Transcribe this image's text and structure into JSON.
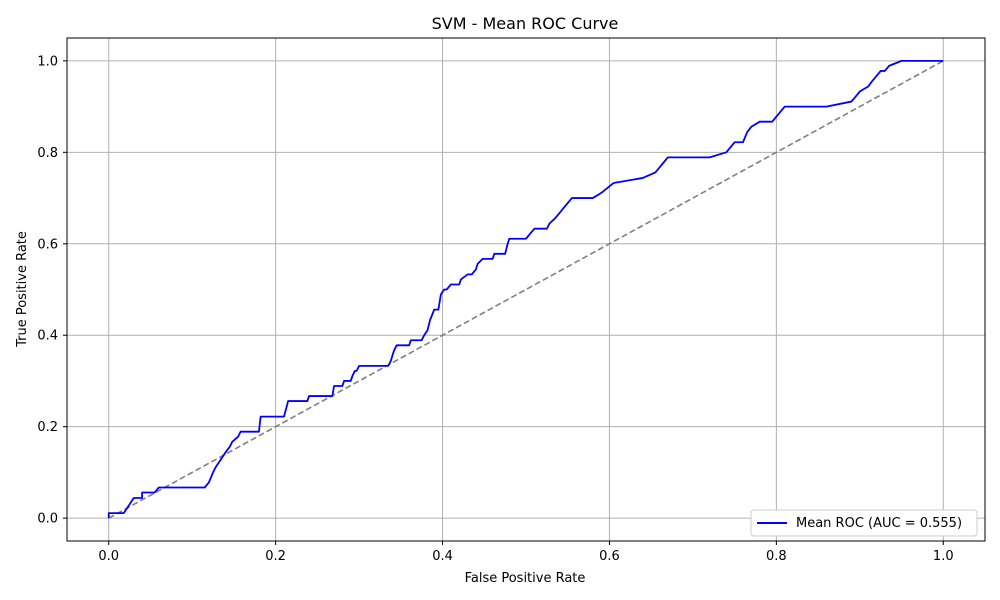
{
  "chart_data": {
    "type": "line",
    "title": "SVM - Mean ROC Curve",
    "xlabel": "False Positive Rate",
    "ylabel": "True Positive Rate",
    "xlim": [
      -0.05,
      1.05
    ],
    "ylim": [
      -0.05,
      1.05
    ],
    "x_ticks": [
      0.0,
      0.2,
      0.4,
      0.6,
      0.8,
      1.0
    ],
    "x_tick_labels": [
      "0.0",
      "0.2",
      "0.4",
      "0.6",
      "0.8",
      "1.0"
    ],
    "y_ticks": [
      0.0,
      0.2,
      0.4,
      0.6,
      0.8,
      1.0
    ],
    "y_tick_labels": [
      "0.0",
      "0.2",
      "0.4",
      "0.6",
      "0.8",
      "1.0"
    ],
    "grid": true,
    "legend_position": "lower-right",
    "legend_label": "Mean ROC (AUC = 0.555)",
    "series": [
      {
        "name": "Mean ROC (AUC = 0.555)",
        "color": "#0000ff",
        "style": "solid",
        "x": [
          0.0,
          0.0,
          0.018,
          0.022,
          0.026,
          0.03,
          0.04,
          0.04,
          0.055,
          0.06,
          0.115,
          0.12,
          0.125,
          0.128,
          0.132,
          0.136,
          0.14,
          0.145,
          0.148,
          0.155,
          0.158,
          0.18,
          0.182,
          0.21,
          0.215,
          0.238,
          0.24,
          0.268,
          0.27,
          0.28,
          0.282,
          0.29,
          0.292,
          0.295,
          0.297,
          0.3,
          0.335,
          0.338,
          0.34,
          0.342,
          0.345,
          0.36,
          0.362,
          0.375,
          0.378,
          0.382,
          0.385,
          0.39,
          0.395,
          0.398,
          0.402,
          0.405,
          0.41,
          0.42,
          0.422,
          0.43,
          0.435,
          0.44,
          0.442,
          0.448,
          0.46,
          0.462,
          0.475,
          0.478,
          0.48,
          0.5,
          0.505,
          0.51,
          0.525,
          0.528,
          0.535,
          0.54,
          0.545,
          0.55,
          0.555,
          0.58,
          0.59,
          0.605,
          0.64,
          0.655,
          0.66,
          0.665,
          0.67,
          0.72,
          0.74,
          0.75,
          0.76,
          0.765,
          0.77,
          0.78,
          0.795,
          0.8,
          0.81,
          0.86,
          0.89,
          0.895,
          0.9,
          0.91,
          0.915,
          0.92,
          0.925,
          0.93,
          0.935,
          0.95,
          0.96,
          0.965,
          1.0
        ],
        "y": [
          0.0,
          0.011,
          0.011,
          0.022,
          0.033,
          0.044,
          0.044,
          0.056,
          0.056,
          0.067,
          0.067,
          0.078,
          0.1,
          0.111,
          0.122,
          0.133,
          0.144,
          0.156,
          0.167,
          0.178,
          0.189,
          0.189,
          0.222,
          0.222,
          0.256,
          0.256,
          0.267,
          0.267,
          0.289,
          0.289,
          0.3,
          0.3,
          0.311,
          0.322,
          0.322,
          0.333,
          0.333,
          0.344,
          0.356,
          0.367,
          0.378,
          0.378,
          0.389,
          0.389,
          0.4,
          0.411,
          0.433,
          0.456,
          0.456,
          0.489,
          0.5,
          0.5,
          0.511,
          0.511,
          0.522,
          0.533,
          0.533,
          0.544,
          0.556,
          0.567,
          0.567,
          0.578,
          0.578,
          0.6,
          0.611,
          0.611,
          0.622,
          0.633,
          0.633,
          0.644,
          0.656,
          0.667,
          0.678,
          0.689,
          0.7,
          0.7,
          0.711,
          0.733,
          0.744,
          0.756,
          0.767,
          0.778,
          0.789,
          0.789,
          0.8,
          0.822,
          0.822,
          0.844,
          0.856,
          0.867,
          0.867,
          0.878,
          0.9,
          0.9,
          0.911,
          0.922,
          0.933,
          0.944,
          0.956,
          0.967,
          0.978,
          0.978,
          0.989,
          1.0,
          1.0,
          1.0,
          1.0
        ]
      },
      {
        "color": "#808080",
        "style": "dashed",
        "x": [
          0.0,
          1.0
        ],
        "y": [
          0.0,
          1.0
        ]
      }
    ]
  }
}
